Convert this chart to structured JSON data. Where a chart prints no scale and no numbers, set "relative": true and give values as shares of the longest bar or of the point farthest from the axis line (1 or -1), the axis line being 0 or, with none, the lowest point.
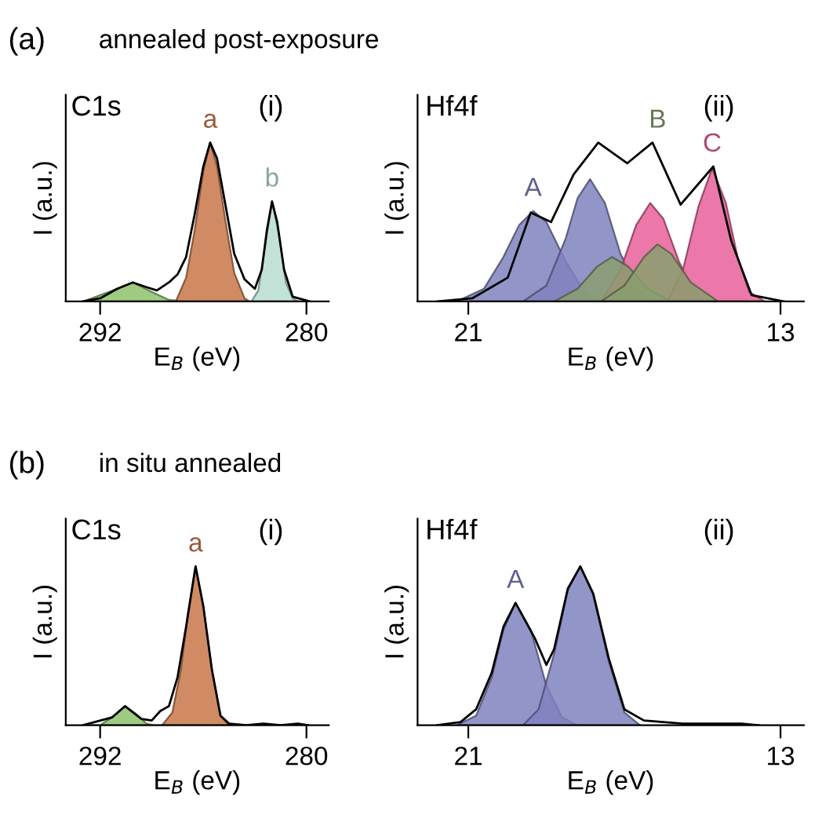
{
  "chart_data": [
    {
      "type": "area",
      "relative": true,
      "title": "C1s",
      "xlabel": "E$_{B}$ (eV)",
      "ylabel": "I (a.u.)",
      "annotations": [
        "(a)",
        "annealed post-exposure",
        "(i)"
      ],
      "xlim": [
        294,
        278.7
      ],
      "xticks": [
        292,
        280
      ],
      "legend": false,
      "grid": false,
      "series": [
        {
          "color": "#8dc26b",
          "x": [
            293.0,
            291.5,
            290.1,
            289.0,
            288.0,
            287.0,
            279.8
          ],
          "values": [
            0,
            0.06,
            0.12,
            0.06,
            0.01,
            0,
            0
          ]
        },
        {
          "name": "a",
          "color": "#c8774a",
          "x": [
            287.6,
            287.0,
            286.5,
            286.0,
            285.6,
            285.2,
            284.7,
            284.2,
            283.6,
            283.3
          ],
          "values": [
            0,
            0.15,
            0.45,
            0.82,
            1.0,
            0.85,
            0.5,
            0.18,
            0.02,
            0
          ]
        },
        {
          "name": "b",
          "color": "#b7ddd0",
          "x": [
            283.2,
            282.8,
            282.4,
            282.0,
            281.6,
            281.2,
            280.8,
            280.5
          ],
          "values": [
            0,
            0.07,
            0.35,
            0.63,
            0.42,
            0.12,
            0.02,
            0
          ]
        },
        {
          "type": "line",
          "color": "#000000",
          "x": [
            293.0,
            292.0,
            291.0,
            290.1,
            289.3,
            288.7,
            288.0,
            287.5,
            287.0,
            286.5,
            286.0,
            285.6,
            285.2,
            284.7,
            284.2,
            283.6,
            283.0,
            282.6,
            282.3,
            282.0,
            281.7,
            281.3,
            280.8,
            279.8
          ],
          "values": [
            0,
            0.02,
            0.08,
            0.12,
            0.09,
            0.07,
            0.12,
            0.17,
            0.28,
            0.55,
            0.85,
            1.0,
            0.9,
            0.6,
            0.3,
            0.14,
            0.08,
            0.2,
            0.45,
            0.63,
            0.5,
            0.2,
            0.03,
            0
          ]
        }
      ]
    },
    {
      "type": "area",
      "relative": true,
      "title": "Hf4f",
      "xlabel": "E$_{B}$ (eV)",
      "ylabel": "I (a.u.)",
      "annotations": [
        "(ii)"
      ],
      "xlim": [
        22.3,
        12.4
      ],
      "xticks": [
        21,
        13
      ],
      "legend": false,
      "grid": false,
      "series": [
        {
          "name": "A",
          "color": "#7f83bd",
          "x": [
            21.3,
            20.6,
            20.1,
            19.7,
            19.34,
            19.0,
            18.5,
            18.0,
            17.6
          ],
          "values": [
            0,
            0.08,
            0.28,
            0.48,
            0.57,
            0.5,
            0.25,
            0.05,
            0
          ]
        },
        {
          "color": "#7f83bd",
          "x": [
            19.6,
            19.0,
            18.5,
            18.2,
            17.88,
            17.5,
            17.1,
            16.6,
            16.1
          ],
          "values": [
            0,
            0.1,
            0.4,
            0.65,
            0.77,
            0.62,
            0.3,
            0.06,
            0
          ]
        },
        {
          "color": "#e8609a",
          "x": [
            17.6,
            17.1,
            16.7,
            16.34,
            16.0,
            15.6,
            15.2,
            14.9
          ],
          "values": [
            0,
            0.2,
            0.48,
            0.62,
            0.52,
            0.25,
            0.06,
            0
          ]
        },
        {
          "name": "C",
          "color": "#e8609a",
          "x": [
            15.9,
            15.5,
            15.1,
            14.75,
            14.4,
            14.1,
            13.8,
            13.4
          ],
          "values": [
            0,
            0.2,
            0.6,
            0.84,
            0.62,
            0.28,
            0.06,
            0
          ]
        },
        {
          "color": "#8a9f6f",
          "x": [
            18.8,
            18.2,
            17.7,
            17.32,
            16.9,
            16.4,
            15.8
          ],
          "values": [
            0,
            0.08,
            0.22,
            0.28,
            0.22,
            0.08,
            0
          ]
        },
        {
          "name": "B",
          "color": "#8a9f6f",
          "x": [
            17.6,
            17.0,
            16.5,
            16.15,
            15.8,
            15.3,
            14.6
          ],
          "values": [
            0,
            0.1,
            0.28,
            0.36,
            0.3,
            0.12,
            0
          ]
        },
        {
          "type": "line",
          "color": "#000000",
          "x": [
            21.78,
            20.9,
            19.99,
            19.4,
            18.88,
            18.3,
            17.67,
            16.93,
            16.28,
            15.56,
            14.72,
            14.26,
            13.74,
            12.9
          ],
          "values": [
            0,
            0.02,
            0.15,
            0.56,
            0.5,
            0.8,
            1.0,
            0.87,
            1.0,
            0.61,
            0.85,
            0.38,
            0.04,
            0
          ]
        }
      ]
    },
    {
      "type": "area",
      "relative": true,
      "title": "C1s",
      "xlabel": "E$_{B}$ (eV)",
      "ylabel": "I (a.u.)",
      "annotations": [
        "(b)",
        "in situ annealed",
        "(i)"
      ],
      "xlim": [
        294,
        278.7
      ],
      "xticks": [
        292,
        280
      ],
      "legend": false,
      "grid": false,
      "series": [
        {
          "color": "#8dc26b",
          "x": [
            293.0,
            292.0,
            291.3,
            290.55,
            289.9,
            289.3,
            288.9,
            279.9
          ],
          "values": [
            0,
            0,
            0.05,
            0.12,
            0.07,
            0.01,
            0,
            0
          ]
        },
        {
          "name": "a",
          "color": "#c8774a",
          "x": [
            288.4,
            287.8,
            287.3,
            286.9,
            286.45,
            286.0,
            285.5,
            285.0,
            284.5
          ],
          "values": [
            0,
            0.08,
            0.35,
            0.7,
            1.0,
            0.75,
            0.35,
            0.06,
            0
          ]
        },
        {
          "type": "line",
          "color": "#000000",
          "x": [
            293.0,
            291.3,
            290.55,
            289.6,
            289.0,
            288.5,
            288.0,
            287.5,
            287.0,
            286.45,
            286.0,
            285.5,
            285.0,
            284.5,
            283.5,
            282.5,
            281.5,
            280.5,
            279.9
          ],
          "values": [
            0,
            0.05,
            0.12,
            0.04,
            0.03,
            0.09,
            0.12,
            0.3,
            0.62,
            1.0,
            0.75,
            0.35,
            0.06,
            0.01,
            0,
            0.01,
            0,
            0.01,
            0
          ]
        }
      ]
    },
    {
      "type": "area",
      "relative": true,
      "title": "Hf4f",
      "xlabel": "E$_{B}$ (eV)",
      "ylabel": "I (a.u.)",
      "annotations": [
        "(ii)"
      ],
      "xlim": [
        22.3,
        12.4
      ],
      "xticks": [
        21,
        13
      ],
      "legend": false,
      "grid": false,
      "series": [
        {
          "name": "A",
          "color": "#7f83bd",
          "x": [
            21.3,
            20.8,
            20.4,
            20.1,
            19.79,
            19.4,
            19.0,
            18.6,
            18.2
          ],
          "values": [
            0,
            0.06,
            0.3,
            0.6,
            0.77,
            0.6,
            0.25,
            0.05,
            0
          ]
        },
        {
          "color": "#7f83bd",
          "x": [
            19.6,
            19.2,
            18.8,
            18.45,
            18.13,
            17.8,
            17.4,
            17.0,
            16.6
          ],
          "values": [
            0,
            0.1,
            0.45,
            0.85,
            1.0,
            0.82,
            0.4,
            0.08,
            0
          ]
        },
        {
          "type": "line",
          "color": "#000000",
          "x": [
            21.8,
            21.2,
            20.8,
            20.4,
            20.1,
            19.79,
            19.3,
            19.0,
            18.8,
            18.45,
            18.13,
            17.8,
            17.4,
            17.0,
            16.5,
            15.5,
            14.0,
            13.55
          ],
          "values": [
            0,
            0.02,
            0.1,
            0.33,
            0.62,
            0.77,
            0.55,
            0.38,
            0.48,
            0.86,
            1.0,
            0.83,
            0.42,
            0.1,
            0.03,
            0.01,
            0.01,
            0
          ]
        }
      ]
    }
  ]
}
